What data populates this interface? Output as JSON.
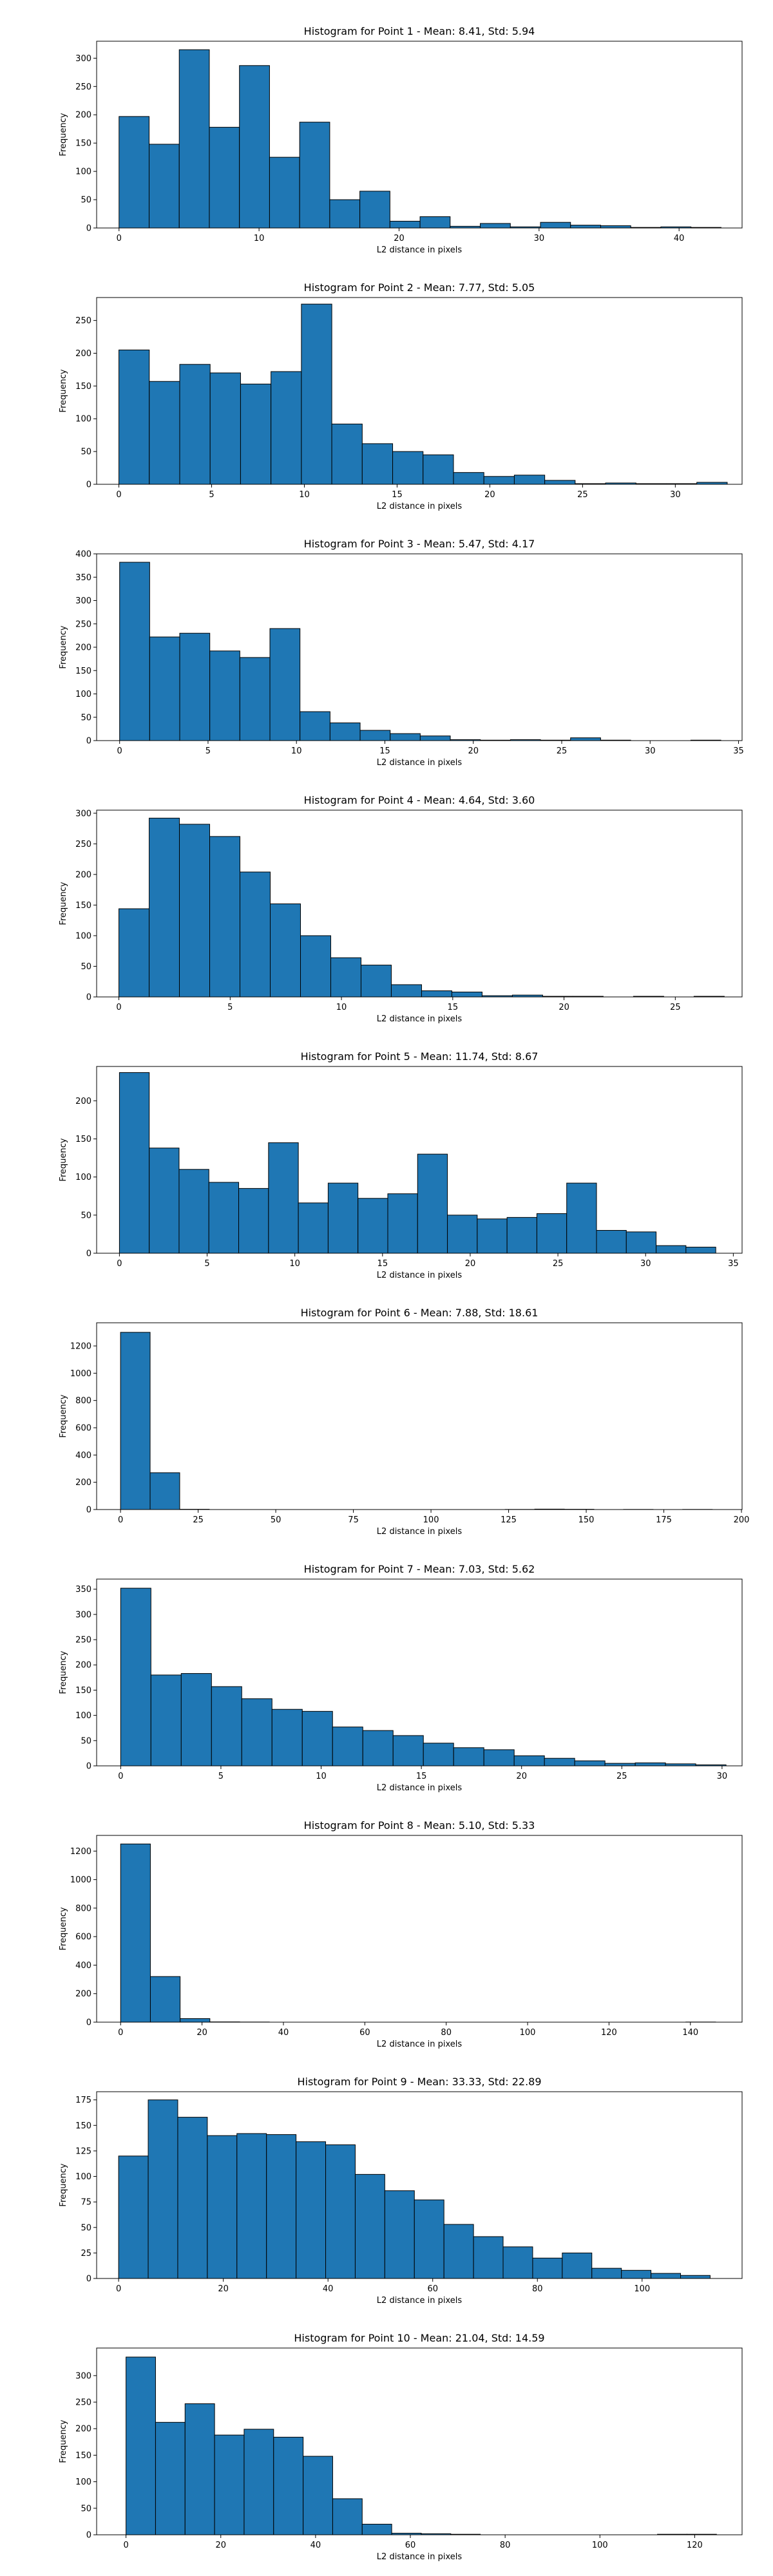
{
  "figure": {
    "background": "#ffffff",
    "bar_color": "#1f77b4",
    "edge_color": "#000000"
  },
  "chart_data": [
    {
      "type": "bar",
      "title": "Histogram for Point 1 - Mean: 8.41, Std: 5.94",
      "xlabel": "L2 distance in pixels",
      "ylabel": "Frequency",
      "xlim": [
        -1.6,
        44.5
      ],
      "ylim": [
        0,
        330
      ],
      "xticks": [
        0,
        10,
        20,
        30,
        40
      ],
      "yticks": [
        0,
        50,
        100,
        150,
        200,
        250,
        300
      ],
      "grid": false,
      "bin_start": 0,
      "bin_width": 2.15,
      "values": [
        197,
        148,
        315,
        178,
        287,
        125,
        187,
        50,
        65,
        12,
        20,
        3,
        8,
        2,
        10,
        5,
        4,
        1,
        2,
        1
      ]
    },
    {
      "type": "bar",
      "title": "Histogram for Point 2 - Mean: 7.77, Std: 5.05",
      "xlabel": "L2 distance in pixels",
      "ylabel": "Frequency",
      "xlim": [
        -1.2,
        33.6
      ],
      "ylim": [
        0,
        285
      ],
      "xticks": [
        0,
        5,
        10,
        15,
        20,
        25,
        30
      ],
      "yticks": [
        0,
        50,
        100,
        150,
        200,
        250
      ],
      "grid": false,
      "bin_start": 0,
      "bin_width": 1.64,
      "values": [
        205,
        157,
        183,
        170,
        153,
        172,
        275,
        92,
        62,
        50,
        45,
        18,
        12,
        14,
        6,
        1,
        2,
        1,
        1,
        3
      ]
    },
    {
      "type": "bar",
      "title": "Histogram for Point 3 - Mean: 5.47, Std: 4.17",
      "xlabel": "L2 distance in pixels",
      "ylabel": "Frequency",
      "xlim": [
        -1.3,
        35.2
      ],
      "ylim": [
        0,
        400
      ],
      "xticks": [
        0,
        5,
        10,
        15,
        20,
        25,
        30,
        35
      ],
      "yticks": [
        0,
        50,
        100,
        150,
        200,
        250,
        300,
        350,
        400
      ],
      "grid": false,
      "bin_start": 0,
      "bin_width": 1.7,
      "values": [
        382,
        222,
        230,
        192,
        178,
        240,
        62,
        38,
        22,
        15,
        10,
        2,
        1,
        2,
        1,
        6,
        1,
        0,
        0,
        1
      ]
    },
    {
      "type": "bar",
      "title": "Histogram for Point 4 - Mean: 4.64, Std: 3.60",
      "xlabel": "L2 distance in pixels",
      "ylabel": "Frequency",
      "xlim": [
        -1.0,
        28.0
      ],
      "ylim": [
        0,
        305
      ],
      "xticks": [
        0,
        5,
        10,
        15,
        20,
        25
      ],
      "yticks": [
        0,
        50,
        100,
        150,
        200,
        250,
        300
      ],
      "grid": false,
      "bin_start": 0,
      "bin_width": 1.36,
      "values": [
        144,
        292,
        282,
        262,
        204,
        152,
        100,
        64,
        52,
        20,
        10,
        8,
        2,
        3,
        1,
        1,
        0,
        1,
        0,
        1
      ]
    },
    {
      "type": "bar",
      "title": "Histogram for Point 5 - Mean: 11.74, Std: 8.67",
      "xlabel": "L2 distance in pixels",
      "ylabel": "Frequency",
      "xlim": [
        -1.3,
        35.5
      ],
      "ylim": [
        0,
        245
      ],
      "xticks": [
        0,
        5,
        10,
        15,
        20,
        25,
        30,
        35
      ],
      "yticks": [
        0,
        50,
        100,
        150,
        200
      ],
      "grid": false,
      "bin_start": 0,
      "bin_width": 1.7,
      "values": [
        237,
        138,
        110,
        93,
        85,
        145,
        66,
        92,
        72,
        78,
        130,
        50,
        45,
        47,
        52,
        92,
        30,
        28,
        10,
        8
      ]
    },
    {
      "type": "bar",
      "title": "Histogram for Point 6 - Mean: 7.88, Std: 18.61",
      "xlabel": "L2 distance in pixels",
      "ylabel": "Frequency",
      "xlim": [
        -7.7,
        200.2
      ],
      "ylim": [
        0,
        1370
      ],
      "xticks": [
        0,
        25,
        50,
        75,
        100,
        125,
        150,
        175,
        200
      ],
      "yticks": [
        0,
        200,
        400,
        600,
        800,
        1000,
        1200
      ],
      "grid": false,
      "bin_start": 0,
      "bin_width": 9.53,
      "values": [
        1300,
        270,
        2,
        0,
        0,
        0,
        0,
        0,
        0,
        0,
        0,
        0,
        0,
        1,
        3,
        2,
        0,
        1,
        0,
        1
      ]
    },
    {
      "type": "bar",
      "title": "Histogram for Point 7 - Mean: 7.03, Std: 5.62",
      "xlabel": "L2 distance in pixels",
      "ylabel": "Frequency",
      "xlim": [
        -1.2,
        31.0
      ],
      "ylim": [
        0,
        370
      ],
      "xticks": [
        0,
        5,
        10,
        15,
        20,
        25,
        30
      ],
      "yticks": [
        0,
        50,
        100,
        150,
        200,
        250,
        300,
        350
      ],
      "grid": false,
      "bin_start": 0,
      "bin_width": 1.51,
      "values": [
        352,
        180,
        183,
        157,
        133,
        112,
        108,
        77,
        70,
        60,
        45,
        36,
        32,
        20,
        15,
        10,
        5,
        6,
        4,
        2
      ]
    },
    {
      "type": "bar",
      "title": "Histogram for Point 8 - Mean: 5.10, Std: 5.33",
      "xlabel": "L2 distance in pixels",
      "ylabel": "Frequency",
      "xlim": [
        -5.9,
        152.7
      ],
      "ylim": [
        0,
        1310
      ],
      "xticks": [
        0,
        20,
        40,
        60,
        80,
        100,
        120,
        140
      ],
      "yticks": [
        0,
        200,
        400,
        600,
        800,
        1000,
        1200
      ],
      "grid": false,
      "bin_start": 0,
      "bin_width": 7.31,
      "values": [
        1250,
        320,
        25,
        2,
        1,
        0,
        0,
        0,
        0,
        0,
        0,
        0,
        0,
        0,
        0,
        0,
        0,
        0,
        0,
        1
      ]
    },
    {
      "type": "bar",
      "title": "Histogram for Point 9 - Mean: 33.33, Std: 22.89",
      "xlabel": "L2 distance in pixels",
      "ylabel": "Frequency",
      "xlim": [
        -4.2,
        119.1
      ],
      "ylim": [
        0,
        183
      ],
      "xticks": [
        0,
        20,
        40,
        60,
        80,
        100
      ],
      "yticks": [
        0,
        25,
        50,
        75,
        100,
        125,
        150,
        175
      ],
      "grid": false,
      "bin_start": 0,
      "bin_width": 5.65,
      "values": [
        120,
        175,
        158,
        140,
        142,
        141,
        134,
        131,
        102,
        86,
        77,
        53,
        41,
        31,
        20,
        25,
        10,
        8,
        5,
        3
      ]
    },
    {
      "type": "bar",
      "title": "Histogram for Point 10 - Mean: 21.04, Std: 14.59",
      "xlabel": "L2 distance in pixels",
      "ylabel": "Frequency",
      "xlim": [
        -6.2,
        130.0
      ],
      "ylim": [
        0,
        352
      ],
      "xticks": [
        0,
        20,
        40,
        60,
        80,
        100,
        120
      ],
      "yticks": [
        0,
        50,
        100,
        150,
        200,
        250,
        300
      ],
      "grid": false,
      "bin_start": 0,
      "bin_width": 6.23,
      "values": [
        335,
        212,
        247,
        188,
        199,
        184,
        148,
        68,
        20,
        3,
        2,
        1,
        0,
        0,
        0,
        0,
        0,
        0,
        1,
        1
      ]
    }
  ]
}
